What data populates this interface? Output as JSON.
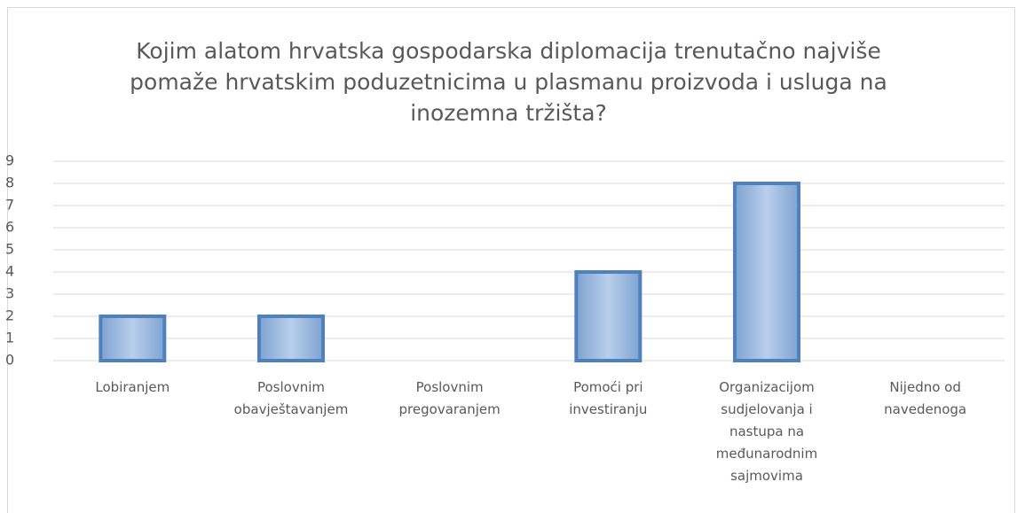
{
  "chart_data": {
    "type": "bar",
    "title": "Kojim alatom hrvatska gospodarska diplomacija trenutačno najviše pomaže hrvatskim poduzetnicima u plasmanu proizvoda i usluga na inozemna tržišta?",
    "categories": [
      "Lobiranjem",
      "Poslovnim obavještavanjem",
      "Poslovnim pregovaranjem",
      "Pomoći pri investiranju",
      "Organizacijom sudjelovanja i nastupa na međunarodnim sajmovima",
      "Nijedno od navedenoga"
    ],
    "values": [
      2,
      2,
      0,
      4,
      8,
      0
    ],
    "color": "#95b3d7",
    "ylim": [
      0,
      9
    ],
    "yticks": [
      0,
      1,
      2,
      3,
      4,
      5,
      6,
      7,
      8,
      9
    ],
    "grid": true
  }
}
